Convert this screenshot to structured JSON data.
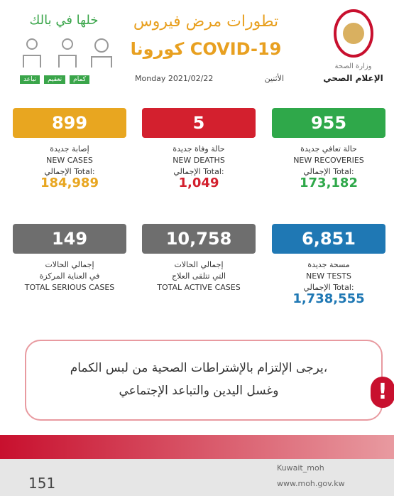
{
  "header": {
    "slogan": "خلها في بالك",
    "precautions": [
      "تباعد",
      "تعقيم",
      "كمام"
    ],
    "title_line1": "تطورات مرض فيروس",
    "title_line2": "كورونا COVID-19",
    "date": "Monday 2021/02/22",
    "day_ar": "الأثنين",
    "ministry": "وزارة الصحة",
    "department": "الإعلام الصحي"
  },
  "cards": [
    {
      "value": "899",
      "label_ar": "إصابة جديدة",
      "label_en": "NEW CASES",
      "total_label": "الإجمالي Total:",
      "total": "184,989"
    },
    {
      "value": "5",
      "label_ar": "حالة وفاة جديدة",
      "label_en": "NEW DEATHS",
      "total_label": "الإجمالي Total:",
      "total": "1,049"
    },
    {
      "value": "955",
      "label_ar": "حالة تعافي جديدة",
      "label_en": "NEW RECOVERIES",
      "total_label": "الإجمالي Total:",
      "total": "173,182"
    },
    {
      "value": "149",
      "label_ar": "إجمالي الحالات",
      "label_ar2": "في العناية المركزة",
      "label_en": "TOTAL SERIOUS CASES"
    },
    {
      "value": "10,758",
      "label_ar": "إجمالي الحالات",
      "label_ar2": "التي تتلقى العلاج",
      "label_en": "TOTAL ACTIVE CASES"
    },
    {
      "value": "6,851",
      "label_ar": "مسحة جديدة",
      "label_en": "NEW TESTS",
      "total_label": "الإجمالي Total:",
      "total": "1,738,555"
    }
  ],
  "notice": {
    "line1": "يرجى الإلتزام بالإشتراطات الصحية من لبس الكمام،",
    "line2": "وغسل اليدين والتباعد الإجتماعي"
  },
  "footer": {
    "social": "Kuwait_moh",
    "website": "www.moh.gov.kw",
    "phone": "151"
  }
}
